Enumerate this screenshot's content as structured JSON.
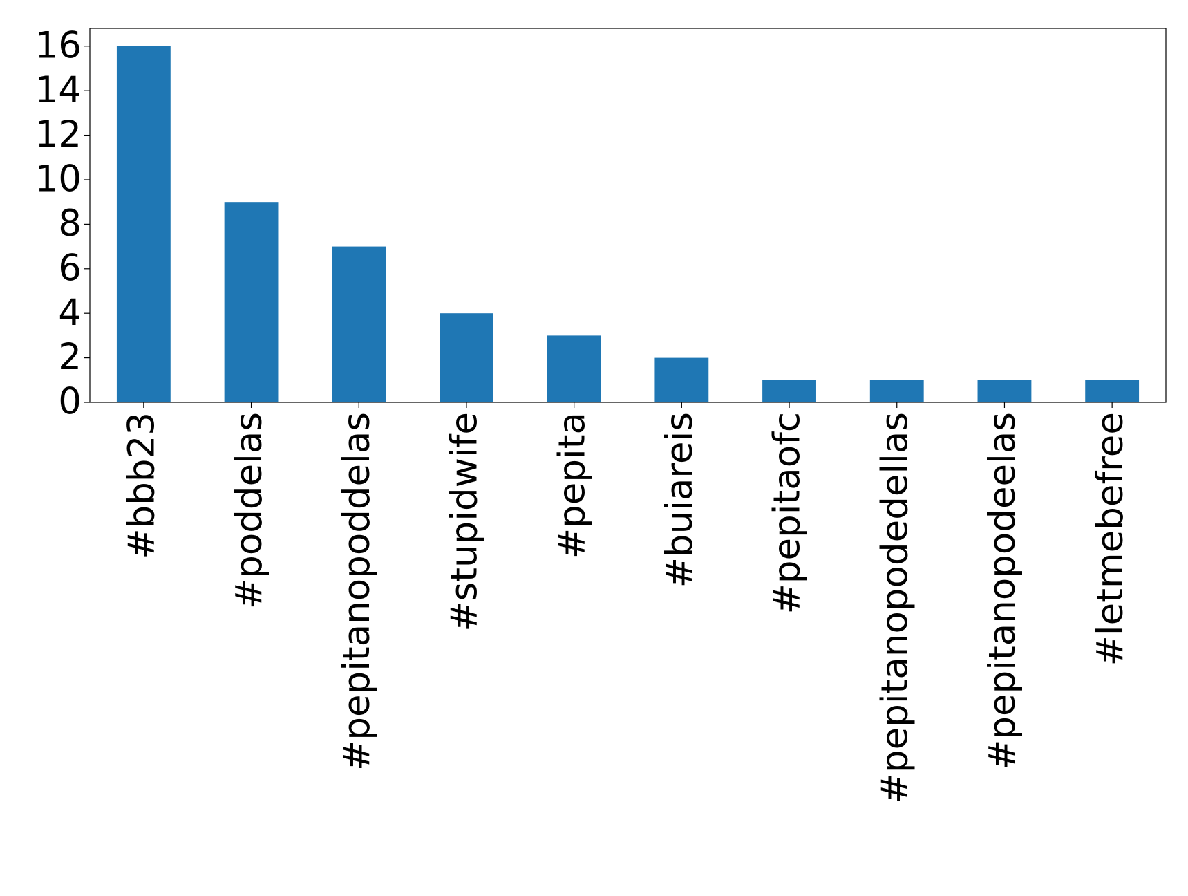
{
  "chart_data": {
    "type": "bar",
    "categories": [
      "#bbb23",
      "#poddelas",
      "#pepitanopoddelas",
      "#stupidwife",
      "#pepita",
      "#buiareis",
      "#pepitaofc",
      "#pepitanopodedellas",
      "#pepitanopodeelas",
      "#letmebefree"
    ],
    "values": [
      16,
      9,
      7,
      4,
      3,
      2,
      1,
      1,
      1,
      1
    ],
    "color": "#1f77b4",
    "ylim": [
      0,
      16.8
    ],
    "yticks": [
      0,
      2,
      4,
      6,
      8,
      10,
      12,
      14,
      16
    ],
    "grid": false
  }
}
